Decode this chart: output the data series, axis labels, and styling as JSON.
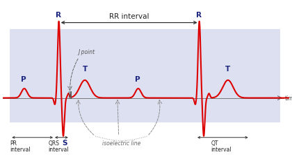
{
  "bg_color": "white",
  "ecg_color": "#dd0000",
  "text_color": "#1a237e",
  "shade_color": "#dde0f0",
  "axis_color": "#555555",
  "arrow_color": "#333333",
  "iso_color": "#888888",
  "figsize": [
    4.2,
    2.28
  ],
  "dpi": 100,
  "xlim": [
    0,
    11.0
  ],
  "ylim": [
    -2.2,
    3.8
  ],
  "beat1_r": 2.15,
  "beat2_r": 7.55,
  "beat1_p": 0.82,
  "beat2_p": 5.2,
  "beat1_s": 2.35,
  "beat1_t": 3.15,
  "beat2_t": 8.65,
  "beat1_q": 2.0,
  "beat2_q": 7.4
}
